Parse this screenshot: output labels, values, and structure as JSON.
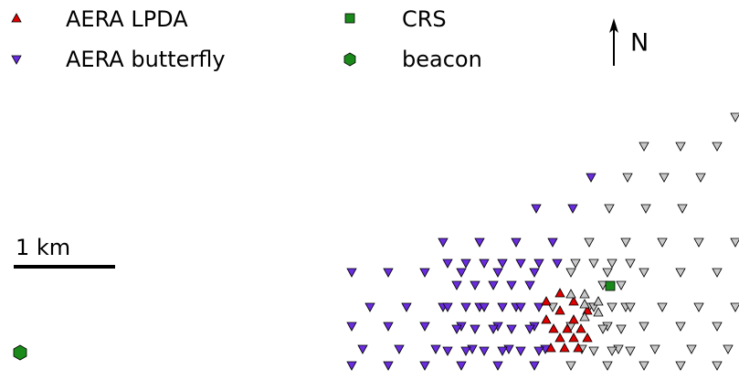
{
  "legend": {
    "items": [
      {
        "label": "AERA LPDA"
      },
      {
        "label": "AERA butterfly"
      },
      {
        "label": "CRS"
      },
      {
        "label": "beacon"
      }
    ]
  },
  "north_label": "N",
  "scale_label": "1 km"
}
